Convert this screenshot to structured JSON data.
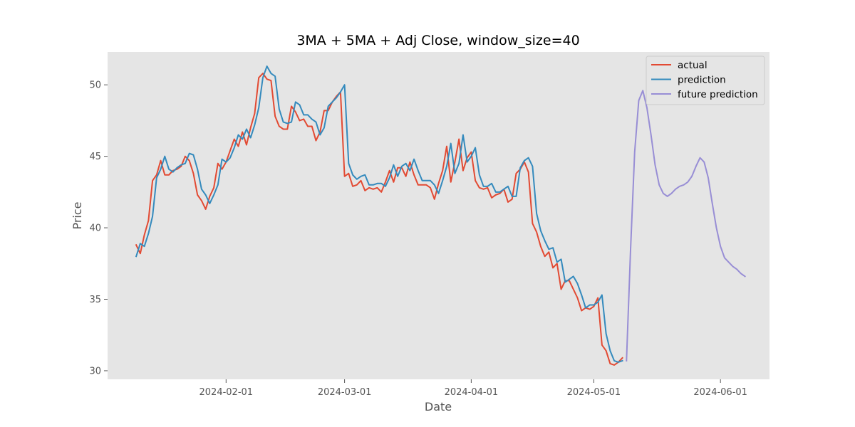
{
  "chart_data": {
    "type": "line",
    "title": "3MA + 5MA + Adj Close, window_size=40",
    "xlabel": "Date",
    "ylabel": "Price",
    "xlim": [
      "2024-01-03",
      "2024-06-13"
    ],
    "ylim": [
      29.4,
      52.3
    ],
    "x_ticks": [
      "2024-02-01",
      "2024-03-01",
      "2024-04-01",
      "2024-05-01",
      "2024-06-01"
    ],
    "y_ticks": [
      30,
      35,
      40,
      45,
      50
    ],
    "grid": false,
    "background": "#e5e5e5",
    "legend_position": "top-right",
    "series": [
      {
        "name": "actual",
        "color": "#e24a33",
        "points": [
          [
            "2024-01-10",
            38.8
          ],
          [
            "2024-01-11",
            38.2
          ],
          [
            "2024-01-12",
            39.5
          ],
          [
            "2024-01-13",
            40.5
          ],
          [
            "2024-01-14",
            43.3
          ],
          [
            "2024-01-15",
            43.7
          ],
          [
            "2024-01-16",
            44.7
          ],
          [
            "2024-01-17",
            43.7
          ],
          [
            "2024-01-18",
            43.7
          ],
          [
            "2024-01-19",
            44.0
          ],
          [
            "2024-01-20",
            44.1
          ],
          [
            "2024-01-21",
            44.3
          ],
          [
            "2024-01-22",
            45.0
          ],
          [
            "2024-01-23",
            44.7
          ],
          [
            "2024-01-24",
            43.8
          ],
          [
            "2024-01-25",
            42.3
          ],
          [
            "2024-01-26",
            41.9
          ],
          [
            "2024-01-27",
            41.3
          ],
          [
            "2024-01-28",
            42.2
          ],
          [
            "2024-01-29",
            42.8
          ],
          [
            "2024-01-30",
            44.5
          ],
          [
            "2024-01-31",
            44.1
          ],
          [
            "2024-02-01",
            44.6
          ],
          [
            "2024-02-02",
            45.4
          ],
          [
            "2024-02-03",
            46.2
          ],
          [
            "2024-02-04",
            45.7
          ],
          [
            "2024-02-05",
            46.7
          ],
          [
            "2024-02-06",
            45.8
          ],
          [
            "2024-02-07",
            47.0
          ],
          [
            "2024-02-08",
            48.0
          ],
          [
            "2024-02-09",
            50.5
          ],
          [
            "2024-02-10",
            50.8
          ],
          [
            "2024-02-11",
            50.4
          ],
          [
            "2024-02-12",
            50.3
          ],
          [
            "2024-02-13",
            47.8
          ],
          [
            "2024-02-14",
            47.1
          ],
          [
            "2024-02-15",
            46.9
          ],
          [
            "2024-02-16",
            46.9
          ],
          [
            "2024-02-17",
            48.5
          ],
          [
            "2024-02-18",
            48.1
          ],
          [
            "2024-02-19",
            47.5
          ],
          [
            "2024-02-20",
            47.6
          ],
          [
            "2024-02-21",
            47.1
          ],
          [
            "2024-02-22",
            47.1
          ],
          [
            "2024-02-23",
            46.1
          ],
          [
            "2024-02-24",
            46.7
          ],
          [
            "2024-02-25",
            48.2
          ],
          [
            "2024-02-26",
            48.2
          ],
          [
            "2024-02-27",
            48.8
          ],
          [
            "2024-02-28",
            49.2
          ],
          [
            "2024-02-29",
            49.5
          ],
          [
            "2024-03-01",
            43.6
          ],
          [
            "2024-03-02",
            43.8
          ],
          [
            "2024-03-03",
            42.9
          ],
          [
            "2024-03-04",
            43.0
          ],
          [
            "2024-03-05",
            43.3
          ],
          [
            "2024-03-06",
            42.6
          ],
          [
            "2024-03-07",
            42.8
          ],
          [
            "2024-03-08",
            42.7
          ],
          [
            "2024-03-09",
            42.8
          ],
          [
            "2024-03-10",
            42.5
          ],
          [
            "2024-03-11",
            43.2
          ],
          [
            "2024-03-12",
            44.0
          ],
          [
            "2024-03-13",
            43.2
          ],
          [
            "2024-03-14",
            44.2
          ],
          [
            "2024-03-15",
            44.2
          ],
          [
            "2024-03-16",
            43.6
          ],
          [
            "2024-03-17",
            44.6
          ],
          [
            "2024-03-18",
            43.7
          ],
          [
            "2024-03-19",
            43.0
          ],
          [
            "2024-03-20",
            43.0
          ],
          [
            "2024-03-21",
            43.0
          ],
          [
            "2024-03-22",
            42.8
          ],
          [
            "2024-03-23",
            42.0
          ],
          [
            "2024-03-24",
            43.1
          ],
          [
            "2024-03-25",
            44.0
          ],
          [
            "2024-03-26",
            45.7
          ],
          [
            "2024-03-27",
            43.2
          ],
          [
            "2024-03-28",
            44.6
          ],
          [
            "2024-03-29",
            46.2
          ],
          [
            "2024-03-30",
            44.0
          ],
          [
            "2024-03-31",
            44.9
          ],
          [
            "2024-04-01",
            45.3
          ],
          [
            "2024-04-02",
            43.3
          ],
          [
            "2024-04-03",
            42.8
          ],
          [
            "2024-04-04",
            42.7
          ],
          [
            "2024-04-05",
            42.8
          ],
          [
            "2024-04-06",
            42.1
          ],
          [
            "2024-04-07",
            42.3
          ],
          [
            "2024-04-08",
            42.4
          ],
          [
            "2024-04-09",
            42.7
          ],
          [
            "2024-04-10",
            41.8
          ],
          [
            "2024-04-11",
            42.0
          ],
          [
            "2024-04-12",
            43.8
          ],
          [
            "2024-04-13",
            44.1
          ],
          [
            "2024-04-14",
            44.6
          ],
          [
            "2024-04-15",
            43.9
          ],
          [
            "2024-04-16",
            40.3
          ],
          [
            "2024-04-17",
            39.7
          ],
          [
            "2024-04-18",
            38.7
          ],
          [
            "2024-04-19",
            38.0
          ],
          [
            "2024-04-20",
            38.3
          ],
          [
            "2024-04-21",
            37.2
          ],
          [
            "2024-04-22",
            37.5
          ],
          [
            "2024-04-23",
            35.7
          ],
          [
            "2024-04-24",
            36.3
          ],
          [
            "2024-04-25",
            36.3
          ],
          [
            "2024-04-26",
            35.7
          ],
          [
            "2024-04-27",
            35.1
          ],
          [
            "2024-04-28",
            34.2
          ],
          [
            "2024-04-29",
            34.4
          ],
          [
            "2024-04-30",
            34.3
          ],
          [
            "2024-05-01",
            34.5
          ],
          [
            "2024-05-02",
            35.1
          ],
          [
            "2024-05-03",
            31.8
          ],
          [
            "2024-05-04",
            31.4
          ],
          [
            "2024-05-05",
            30.5
          ],
          [
            "2024-05-06",
            30.4
          ],
          [
            "2024-05-07",
            30.6
          ],
          [
            "2024-05-08",
            30.9
          ]
        ]
      },
      {
        "name": "prediction",
        "color": "#348abd",
        "points": [
          [
            "2024-01-10",
            38.0
          ],
          [
            "2024-01-11",
            38.9
          ],
          [
            "2024-01-12",
            38.7
          ],
          [
            "2024-01-13",
            39.6
          ],
          [
            "2024-01-14",
            40.8
          ],
          [
            "2024-01-15",
            43.5
          ],
          [
            "2024-01-16",
            44.1
          ],
          [
            "2024-01-17",
            45.0
          ],
          [
            "2024-01-18",
            44.1
          ],
          [
            "2024-01-19",
            43.9
          ],
          [
            "2024-01-20",
            44.2
          ],
          [
            "2024-01-21",
            44.4
          ],
          [
            "2024-01-22",
            44.5
          ],
          [
            "2024-01-23",
            45.2
          ],
          [
            "2024-01-24",
            45.1
          ],
          [
            "2024-01-25",
            44.1
          ],
          [
            "2024-01-26",
            42.7
          ],
          [
            "2024-01-27",
            42.3
          ],
          [
            "2024-01-28",
            41.7
          ],
          [
            "2024-01-29",
            42.3
          ],
          [
            "2024-01-30",
            43.0
          ],
          [
            "2024-01-31",
            44.8
          ],
          [
            "2024-02-01",
            44.6
          ],
          [
            "2024-02-02",
            44.9
          ],
          [
            "2024-02-03",
            45.6
          ],
          [
            "2024-02-04",
            46.5
          ],
          [
            "2024-02-05",
            46.2
          ],
          [
            "2024-02-06",
            46.9
          ],
          [
            "2024-02-07",
            46.3
          ],
          [
            "2024-02-08",
            47.2
          ],
          [
            "2024-02-09",
            48.4
          ],
          [
            "2024-02-10",
            50.5
          ],
          [
            "2024-02-11",
            51.3
          ],
          [
            "2024-02-12",
            50.8
          ],
          [
            "2024-02-13",
            50.6
          ],
          [
            "2024-02-14",
            48.3
          ],
          [
            "2024-02-15",
            47.4
          ],
          [
            "2024-02-16",
            47.3
          ],
          [
            "2024-02-17",
            47.4
          ],
          [
            "2024-02-18",
            48.8
          ],
          [
            "2024-02-19",
            48.6
          ],
          [
            "2024-02-20",
            47.9
          ],
          [
            "2024-02-21",
            47.9
          ],
          [
            "2024-02-22",
            47.6
          ],
          [
            "2024-02-23",
            47.4
          ],
          [
            "2024-02-24",
            46.5
          ],
          [
            "2024-02-25",
            47.0
          ],
          [
            "2024-02-26",
            48.5
          ],
          [
            "2024-02-27",
            48.8
          ],
          [
            "2024-02-28",
            49.1
          ],
          [
            "2024-02-29",
            49.5
          ],
          [
            "2024-03-01",
            50.0
          ],
          [
            "2024-03-02",
            44.5
          ],
          [
            "2024-03-03",
            43.7
          ],
          [
            "2024-03-04",
            43.4
          ],
          [
            "2024-03-05",
            43.6
          ],
          [
            "2024-03-06",
            43.7
          ],
          [
            "2024-03-07",
            43.0
          ],
          [
            "2024-03-08",
            43.0
          ],
          [
            "2024-03-09",
            43.1
          ],
          [
            "2024-03-10",
            43.1
          ],
          [
            "2024-03-11",
            42.9
          ],
          [
            "2024-03-12",
            43.5
          ],
          [
            "2024-03-13",
            44.4
          ],
          [
            "2024-03-14",
            43.6
          ],
          [
            "2024-03-15",
            44.3
          ],
          [
            "2024-03-16",
            44.5
          ],
          [
            "2024-03-17",
            44.0
          ],
          [
            "2024-03-18",
            44.8
          ],
          [
            "2024-03-19",
            44.0
          ],
          [
            "2024-03-20",
            43.3
          ],
          [
            "2024-03-21",
            43.3
          ],
          [
            "2024-03-22",
            43.3
          ],
          [
            "2024-03-23",
            43.0
          ],
          [
            "2024-03-24",
            42.4
          ],
          [
            "2024-03-25",
            43.3
          ],
          [
            "2024-03-26",
            44.3
          ],
          [
            "2024-03-27",
            45.9
          ],
          [
            "2024-03-28",
            43.8
          ],
          [
            "2024-03-29",
            44.5
          ],
          [
            "2024-03-30",
            46.5
          ],
          [
            "2024-03-31",
            44.6
          ],
          [
            "2024-04-01",
            45.0
          ],
          [
            "2024-04-02",
            45.6
          ],
          [
            "2024-04-03",
            43.7
          ],
          [
            "2024-04-04",
            42.9
          ],
          [
            "2024-04-05",
            42.9
          ],
          [
            "2024-04-06",
            43.1
          ],
          [
            "2024-04-07",
            42.5
          ],
          [
            "2024-04-08",
            42.5
          ],
          [
            "2024-04-09",
            42.7
          ],
          [
            "2024-04-10",
            42.9
          ],
          [
            "2024-04-11",
            42.2
          ],
          [
            "2024-04-12",
            42.2
          ],
          [
            "2024-04-13",
            44.2
          ],
          [
            "2024-04-14",
            44.7
          ],
          [
            "2024-04-15",
            44.9
          ],
          [
            "2024-04-16",
            44.3
          ],
          [
            "2024-04-17",
            41.0
          ],
          [
            "2024-04-18",
            39.8
          ],
          [
            "2024-04-19",
            39.1
          ],
          [
            "2024-04-20",
            38.5
          ],
          [
            "2024-04-21",
            38.6
          ],
          [
            "2024-04-22",
            37.6
          ],
          [
            "2024-04-23",
            37.8
          ],
          [
            "2024-04-24",
            36.2
          ],
          [
            "2024-04-25",
            36.4
          ],
          [
            "2024-04-26",
            36.6
          ],
          [
            "2024-04-27",
            36.1
          ],
          [
            "2024-04-28",
            35.3
          ],
          [
            "2024-04-29",
            34.4
          ],
          [
            "2024-04-30",
            34.6
          ],
          [
            "2024-05-01",
            34.6
          ],
          [
            "2024-05-02",
            34.8
          ],
          [
            "2024-05-03",
            35.3
          ],
          [
            "2024-05-04",
            32.6
          ],
          [
            "2024-05-05",
            31.4
          ],
          [
            "2024-05-06",
            30.7
          ],
          [
            "2024-05-07",
            30.6
          ],
          [
            "2024-05-08",
            30.7
          ]
        ]
      },
      {
        "name": "future prediction",
        "color": "#988ed5",
        "points": [
          [
            "2024-05-09",
            30.7
          ],
          [
            "2024-05-10",
            38.5
          ],
          [
            "2024-05-11",
            45.3
          ],
          [
            "2024-05-12",
            48.9
          ],
          [
            "2024-05-13",
            49.6
          ],
          [
            "2024-05-14",
            48.4
          ],
          [
            "2024-05-15",
            46.5
          ],
          [
            "2024-05-16",
            44.4
          ],
          [
            "2024-05-17",
            43.0
          ],
          [
            "2024-05-18",
            42.4
          ],
          [
            "2024-05-19",
            42.2
          ],
          [
            "2024-05-20",
            42.4
          ],
          [
            "2024-05-21",
            42.7
          ],
          [
            "2024-05-22",
            42.9
          ],
          [
            "2024-05-23",
            43.0
          ],
          [
            "2024-05-24",
            43.2
          ],
          [
            "2024-05-25",
            43.6
          ],
          [
            "2024-05-26",
            44.3
          ],
          [
            "2024-05-27",
            44.9
          ],
          [
            "2024-05-28",
            44.6
          ],
          [
            "2024-05-29",
            43.5
          ],
          [
            "2024-05-30",
            41.7
          ],
          [
            "2024-05-31",
            40.0
          ],
          [
            "2024-06-01",
            38.7
          ],
          [
            "2024-06-02",
            37.9
          ],
          [
            "2024-06-03",
            37.6
          ],
          [
            "2024-06-04",
            37.3
          ],
          [
            "2024-06-05",
            37.1
          ],
          [
            "2024-06-06",
            36.8
          ],
          [
            "2024-06-07",
            36.6
          ]
        ]
      }
    ]
  }
}
